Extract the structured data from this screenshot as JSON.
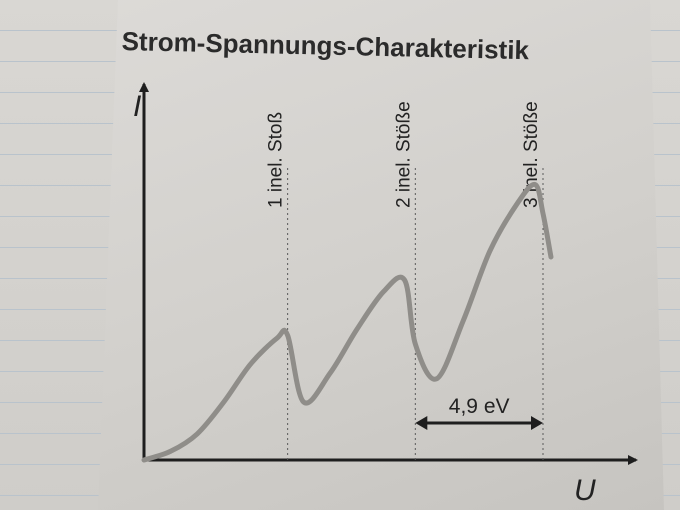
{
  "page": {
    "title": "Strom-Spannungs-Charakteristik"
  },
  "chart_data": {
    "type": "line",
    "title": "Strom-Spannungs-Charakteristik",
    "xlabel": "U",
    "ylabel": "I",
    "grid": false,
    "x_unit": "eV",
    "x": [
      0,
      1,
      2,
      3,
      4,
      5,
      5.4,
      6,
      7,
      8,
      9,
      9.8,
      10.2,
      11,
      12,
      13,
      14,
      14.7,
      15,
      15.3
    ],
    "y": [
      0,
      0.03,
      0.09,
      0.2,
      0.33,
      0.42,
      0.43,
      0.2,
      0.3,
      0.45,
      0.58,
      0.62,
      0.4,
      0.28,
      0.48,
      0.72,
      0.88,
      0.95,
      0.85,
      0.7
    ],
    "markers": [
      {
        "label": "1 inel. Stoß",
        "x": 5.4
      },
      {
        "label": "2 inel. Stöße",
        "x": 10.2
      },
      {
        "label": "3 inel. Stöße",
        "x": 15.0
      }
    ],
    "annotation": {
      "label": "4,9 eV",
      "from_x": 10.2,
      "to_x": 15.0
    },
    "xlim": [
      0,
      17.6
    ],
    "ylim": [
      0,
      1.1
    ]
  },
  "colors": {
    "axis": "#1e1e1e",
    "curve": "#8f8d89",
    "guide": "#5a5a5a",
    "text": "#222222"
  }
}
